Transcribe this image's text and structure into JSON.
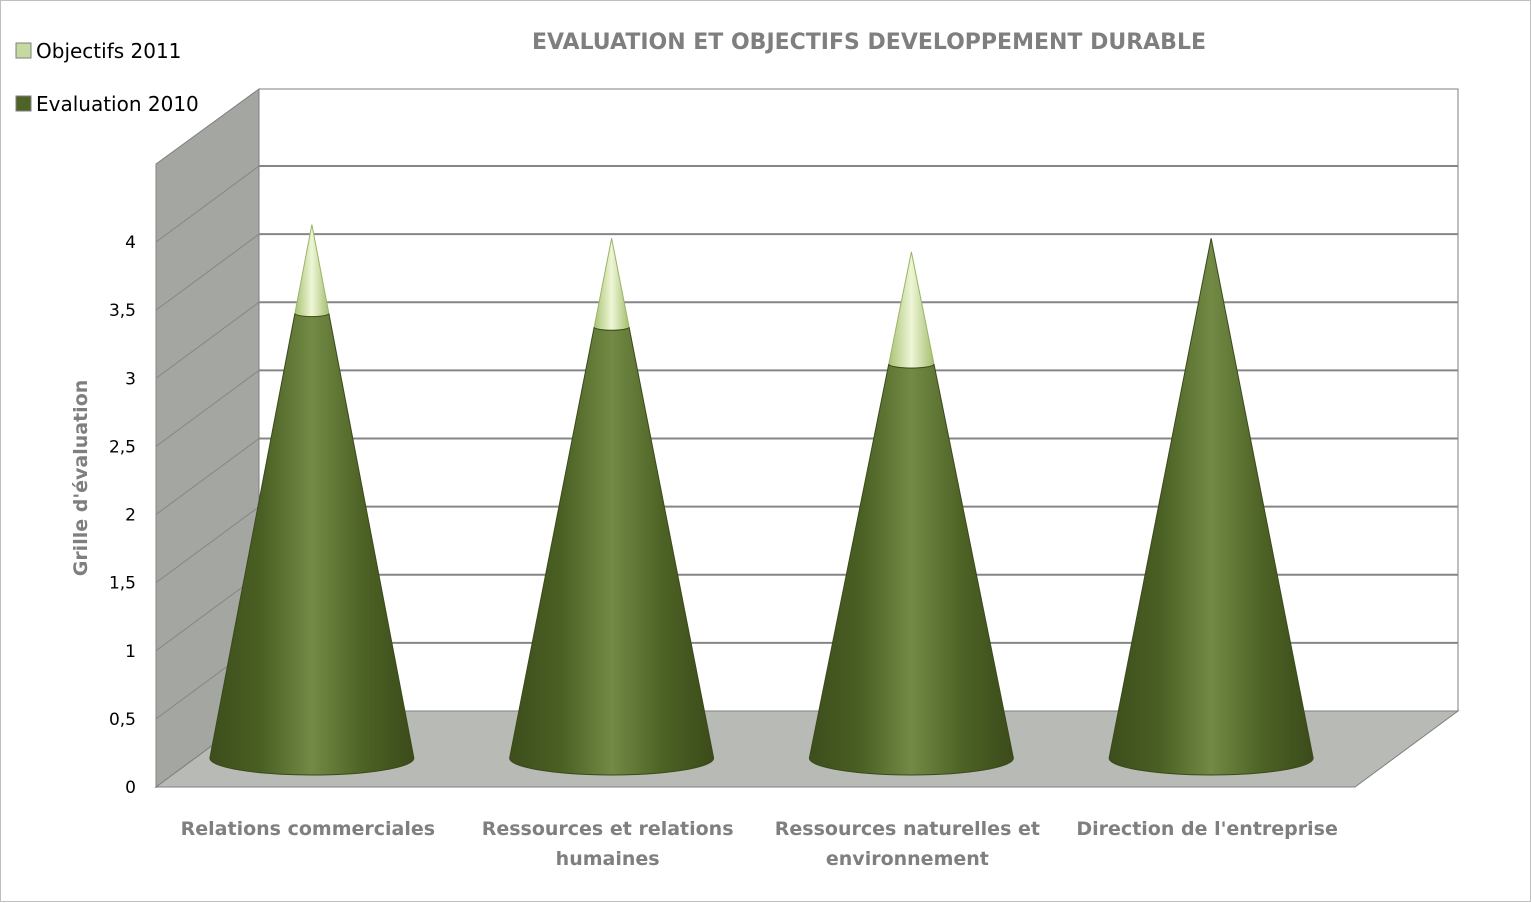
{
  "chart_data": {
    "type": "bar",
    "subtype": "3d-cone-stacked",
    "title": "EVALUATION ET OBJECTIFS DEVELOPPEMENT DURABLE",
    "ylabel": "Grille d'évaluation",
    "xlabel": "",
    "ylim": [
      0,
      4
    ],
    "yticks": [
      "0",
      "0,5",
      "1",
      "1,5",
      "2",
      "2,5",
      "3",
      "3,5",
      "4"
    ],
    "grid": true,
    "legend_position": "top-left",
    "categories": [
      [
        "Relations commerciales"
      ],
      [
        "Ressources et relations",
        "humaines"
      ],
      [
        "Ressources naturelles et",
        "environnement"
      ],
      [
        "Direction de l'entreprise"
      ]
    ],
    "series": [
      {
        "name": "Objectifs 2011",
        "color": "#c6d9a0",
        "values": [
          3.9,
          3.8,
          3.7,
          3.8
        ]
      },
      {
        "name": "Evaluation 2010",
        "color": "#4f6228",
        "values": [
          3.25,
          3.15,
          2.88,
          3.8
        ]
      }
    ]
  }
}
